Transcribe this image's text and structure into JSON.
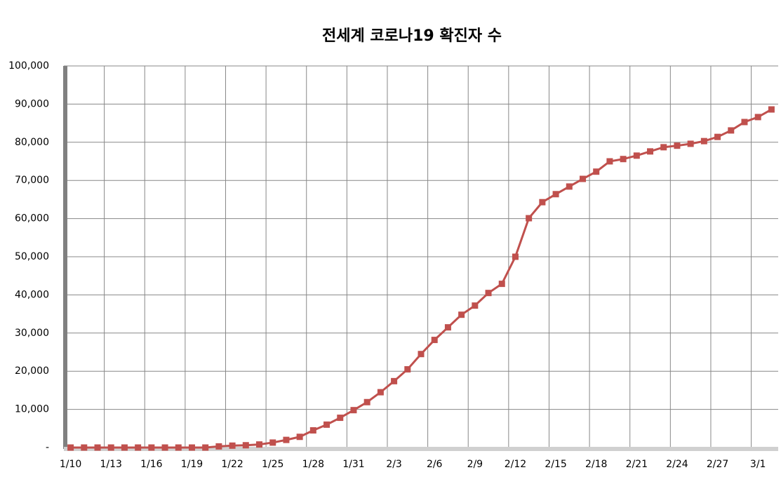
{
  "chart_data": {
    "type": "line",
    "title": "전세계 코로나19 확진자 수",
    "categories": [
      "1/10",
      null,
      null,
      "1/13",
      null,
      null,
      "1/16",
      null,
      null,
      "1/19",
      null,
      null,
      "1/22",
      null,
      null,
      "1/25",
      null,
      null,
      "1/28",
      null,
      null,
      "1/31",
      null,
      null,
      "2/3",
      null,
      null,
      "2/6",
      null,
      null,
      "2/9",
      null,
      null,
      "2/12",
      null,
      null,
      "2/15",
      null,
      null,
      "2/18",
      null,
      null,
      "2/21",
      null,
      null,
      "2/24",
      null,
      null,
      "2/27",
      null,
      null,
      "3/1",
      null
    ],
    "values": [
      0,
      0,
      0,
      0,
      0,
      0,
      0,
      0,
      0,
      0,
      0,
      300,
      500,
      600,
      800,
      1300,
      2000,
      2800,
      4500,
      6000,
      7800,
      9800,
      11900,
      14500,
      17400,
      20500,
      24500,
      28200,
      31500,
      34800,
      37200,
      40500,
      42900,
      50000,
      60100,
      64300,
      66400,
      68400,
      70400,
      72300,
      75000,
      75600,
      76500,
      77600,
      78700,
      79100,
      79600,
      80300,
      81400,
      83100,
      85300,
      86600,
      88600
    ],
    "color": "#c0504d",
    "ylim": [
      0,
      100000
    ],
    "yticks": [
      {
        "value": 0,
        "label": "-"
      },
      {
        "value": 10000,
        "label": "10,000"
      },
      {
        "value": 20000,
        "label": "20,000"
      },
      {
        "value": 30000,
        "label": "30,000"
      },
      {
        "value": 40000,
        "label": "40,000"
      },
      {
        "value": 50000,
        "label": "50,000"
      },
      {
        "value": 60000,
        "label": "60,000"
      },
      {
        "value": 70000,
        "label": "70,000"
      },
      {
        "value": 80000,
        "label": "80,000"
      },
      {
        "value": 90000,
        "label": "90,000"
      },
      {
        "value": 100000,
        "label": "100,000"
      }
    ],
    "grid": true
  }
}
